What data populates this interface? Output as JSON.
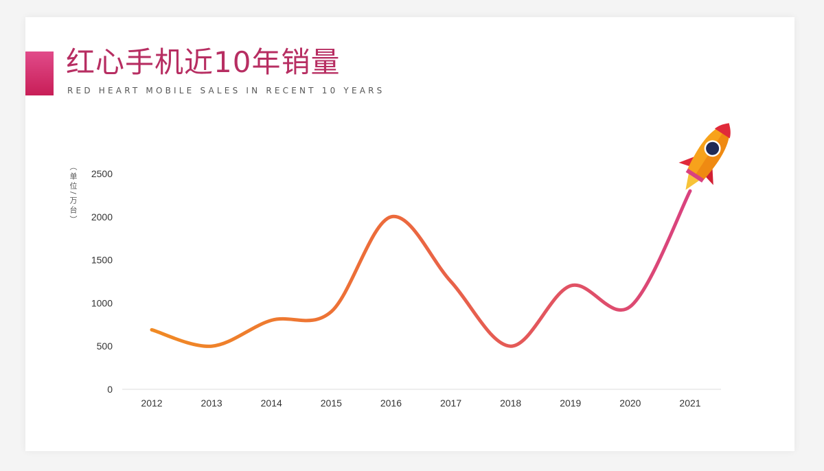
{
  "header": {
    "title": "红心手机近10年销量",
    "subtitle": "RED HEART MOBILE SALES IN RECENT 10 YEARS"
  },
  "chart_data": {
    "type": "line",
    "ylabel": "（单位/万台）",
    "categories": [
      "2012",
      "2013",
      "2014",
      "2015",
      "2016",
      "2017",
      "2018",
      "2019",
      "2020",
      "2021"
    ],
    "values": [
      690,
      500,
      800,
      900,
      2000,
      1250,
      500,
      1200,
      960,
      2300
    ],
    "ylim": [
      0,
      2500
    ],
    "yticks": [
      0,
      500,
      1000,
      1500,
      2000,
      2500
    ],
    "grid": false,
    "colors": {
      "start": "#f08a24",
      "end": "#d9427f",
      "title_accent": "#c81e57"
    },
    "decoration": "rocket-icon"
  }
}
